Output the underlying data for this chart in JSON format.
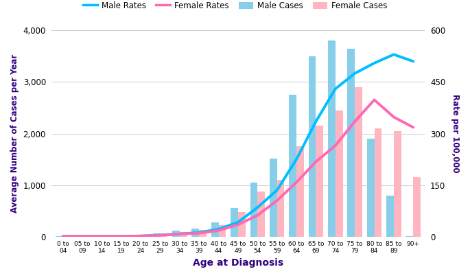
{
  "age_groups": [
    "0 to\n04",
    "05 to\n09",
    "10 to\n14",
    "15 to\n19",
    "20 to\n24",
    "25 to\n29",
    "30 to\n34",
    "35 to\n39",
    "40 to\n44",
    "45 to\n49",
    "50 to\n54",
    "55 to\n59",
    "60 to\n64",
    "65 to\n69",
    "70 to\n74",
    "75 to\n79",
    "80 to\n84",
    "85 to\n89",
    "90+"
  ],
  "male_cases": [
    5,
    5,
    5,
    5,
    10,
    60,
    120,
    160,
    280,
    560,
    1050,
    1520,
    2750,
    3500,
    3800,
    3650,
    1900,
    800,
    5
  ],
  "female_cases": [
    5,
    5,
    5,
    5,
    10,
    30,
    90,
    130,
    220,
    470,
    870,
    1100,
    1750,
    2150,
    2450,
    2900,
    2100,
    2050,
    1150
  ],
  "male_rates": [
    1,
    1,
    1,
    1,
    2,
    5,
    8,
    12,
    22,
    42,
    85,
    135,
    225,
    335,
    430,
    475,
    505,
    530,
    510
  ],
  "female_rates": [
    1,
    1,
    1,
    1,
    2,
    4,
    8,
    10,
    18,
    35,
    62,
    105,
    158,
    218,
    265,
    335,
    398,
    348,
    318
  ],
  "male_cases_color": "#87CEEB",
  "female_cases_color": "#FFB6C1",
  "male_rates_color": "#00BFFF",
  "female_rates_color": "#FF69B4",
  "xlabel": "Age at Diagnosis",
  "ylabel_left": "Average Number of Cases per Year",
  "ylabel_right": "Rate per 100,000",
  "ylim_left": [
    0,
    4000
  ],
  "ylim_right": [
    0,
    600
  ],
  "yticks_left": [
    0,
    1000,
    2000,
    3000,
    4000
  ],
  "yticks_right": [
    0,
    150,
    300,
    450,
    600
  ],
  "legend_labels": [
    "Male Rates",
    "Female Rates",
    "Male Cases",
    "Female Cases"
  ],
  "axis_color": "#33007F",
  "background_color": "#FFFFFF"
}
